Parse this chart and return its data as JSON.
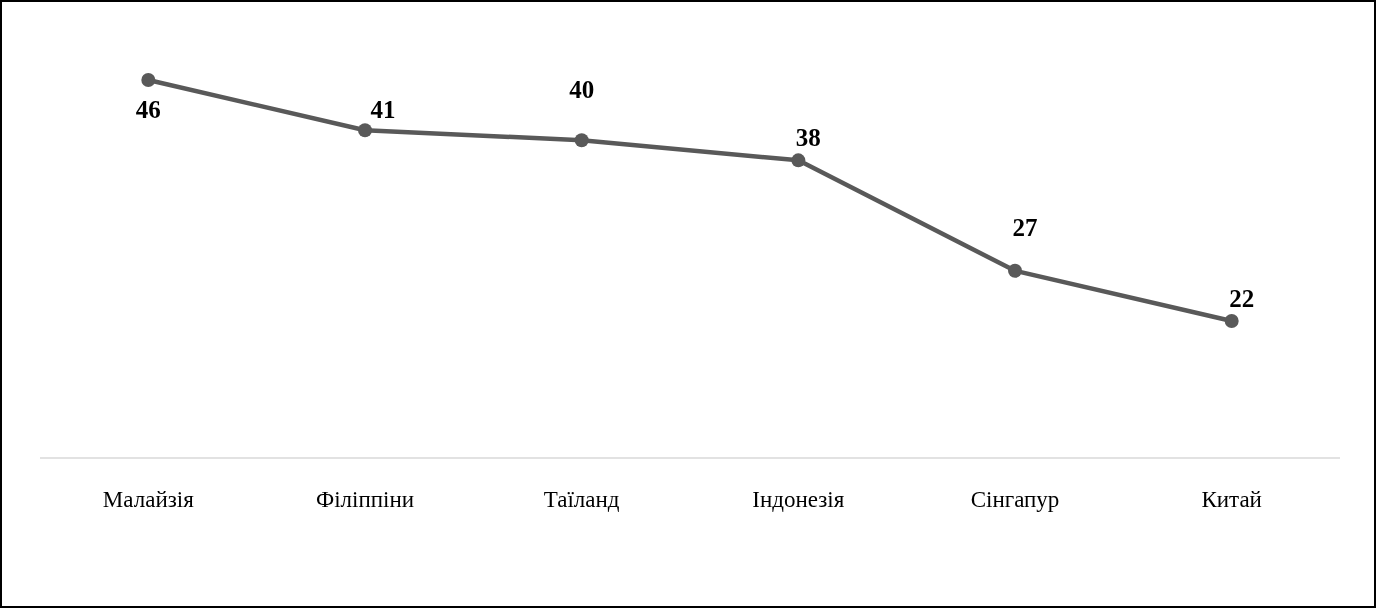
{
  "chart_data": {
    "type": "line",
    "categories": [
      "Малайзія",
      "Філіппіни",
      "Таїланд",
      "Індонезія",
      "Сінгапур",
      "Китай"
    ],
    "series": [
      {
        "color": "#595959",
        "values": [
          46,
          41,
          40,
          38,
          27,
          22
        ]
      }
    ],
    "tick_labels": "x",
    "data_labels": true,
    "marker": "circle",
    "line_style": "solid"
  }
}
